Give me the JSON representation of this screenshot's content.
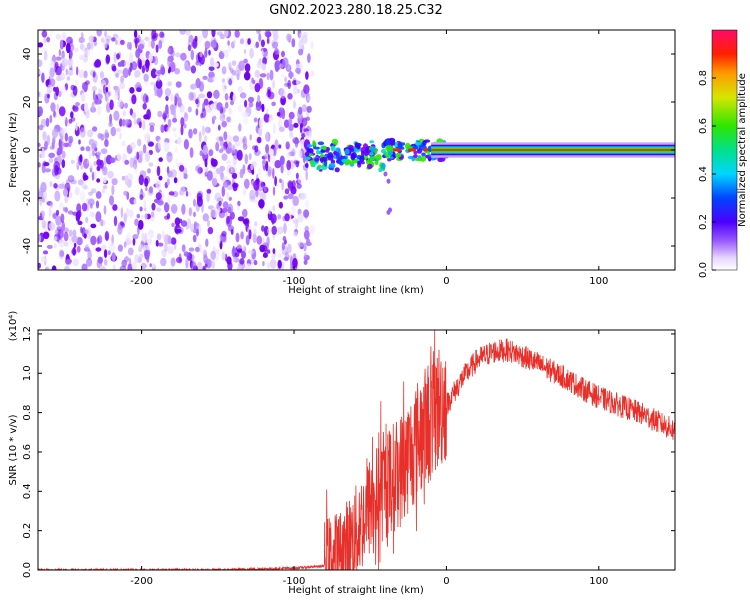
{
  "title": "GN02.2023.280.18.25.C32",
  "colors": {
    "snr_line": "#e8302a",
    "spectrum_purple": "#7a00ff",
    "background": "#ffffff"
  },
  "chart_data": [
    {
      "type": "heatmap",
      "name": "spectrogram",
      "xlabel": "Height of straight line (km)",
      "ylabel": "Frequency (Hz)",
      "xlim": [
        -268,
        150
      ],
      "ylim": [
        -50,
        50
      ],
      "xticks": [
        -200,
        -100,
        0,
        100
      ],
      "xtick_labels": [
        "-200",
        "-100",
        "0",
        "100"
      ],
      "yticks": [
        -40,
        -20,
        0,
        20,
        40
      ],
      "ytick_labels": [
        "-40",
        "-20",
        "0",
        "20",
        "40"
      ],
      "colorbar": {
        "label": "Normalized spectral amplitude",
        "range": [
          0,
          1
        ],
        "ticks": [
          0.0,
          0.2,
          0.4,
          0.6,
          0.8
        ],
        "tick_labels": [
          "0.0",
          "0.2",
          "0.4",
          "0.6",
          "0.8"
        ]
      },
      "regions": {
        "noise_x_range": [
          -268,
          -88
        ],
        "scatter_x_range": [
          -92,
          0
        ],
        "signal_line_x_range": [
          -10,
          150
        ],
        "signal_frequency_hz": 0
      }
    },
    {
      "type": "line",
      "name": "snr",
      "xlabel": "Height of straight line (km)",
      "ylabel": "SNR (10 * v/v)",
      "y_multiplier_label": "(x10⁴)",
      "xlim": [
        -268,
        150
      ],
      "ylim": [
        0,
        1.22
      ],
      "xticks": [
        -200,
        -100,
        0,
        100
      ],
      "xtick_labels": [
        "-200",
        "-100",
        "0",
        "100"
      ],
      "yticks": [
        0.0,
        0.2,
        0.4,
        0.6,
        0.8,
        1.0,
        1.2
      ],
      "ytick_labels": [
        "0.0",
        "0.2",
        "0.4",
        "0.6",
        "0.8",
        "1.0",
        "1.2"
      ],
      "series": [
        {
          "x": [
            -268,
            -200,
            -150,
            -100,
            -80,
            -70,
            -60,
            -50,
            -40,
            -30,
            -25,
            -20,
            -15,
            -10,
            0,
            10,
            20,
            30,
            40,
            50,
            60,
            70,
            80,
            90,
            100,
            110,
            120,
            130,
            140,
            150
          ],
          "y": [
            0.0,
            0.0,
            0.0,
            0.01,
            0.02,
            0.05,
            0.15,
            0.3,
            0.4,
            0.48,
            0.55,
            0.62,
            0.68,
            0.74,
            0.85,
            0.98,
            1.08,
            1.12,
            1.13,
            1.1,
            1.06,
            1.02,
            0.98,
            0.93,
            0.89,
            0.86,
            0.83,
            0.8,
            0.76,
            0.72
          ]
        }
      ]
    }
  ]
}
